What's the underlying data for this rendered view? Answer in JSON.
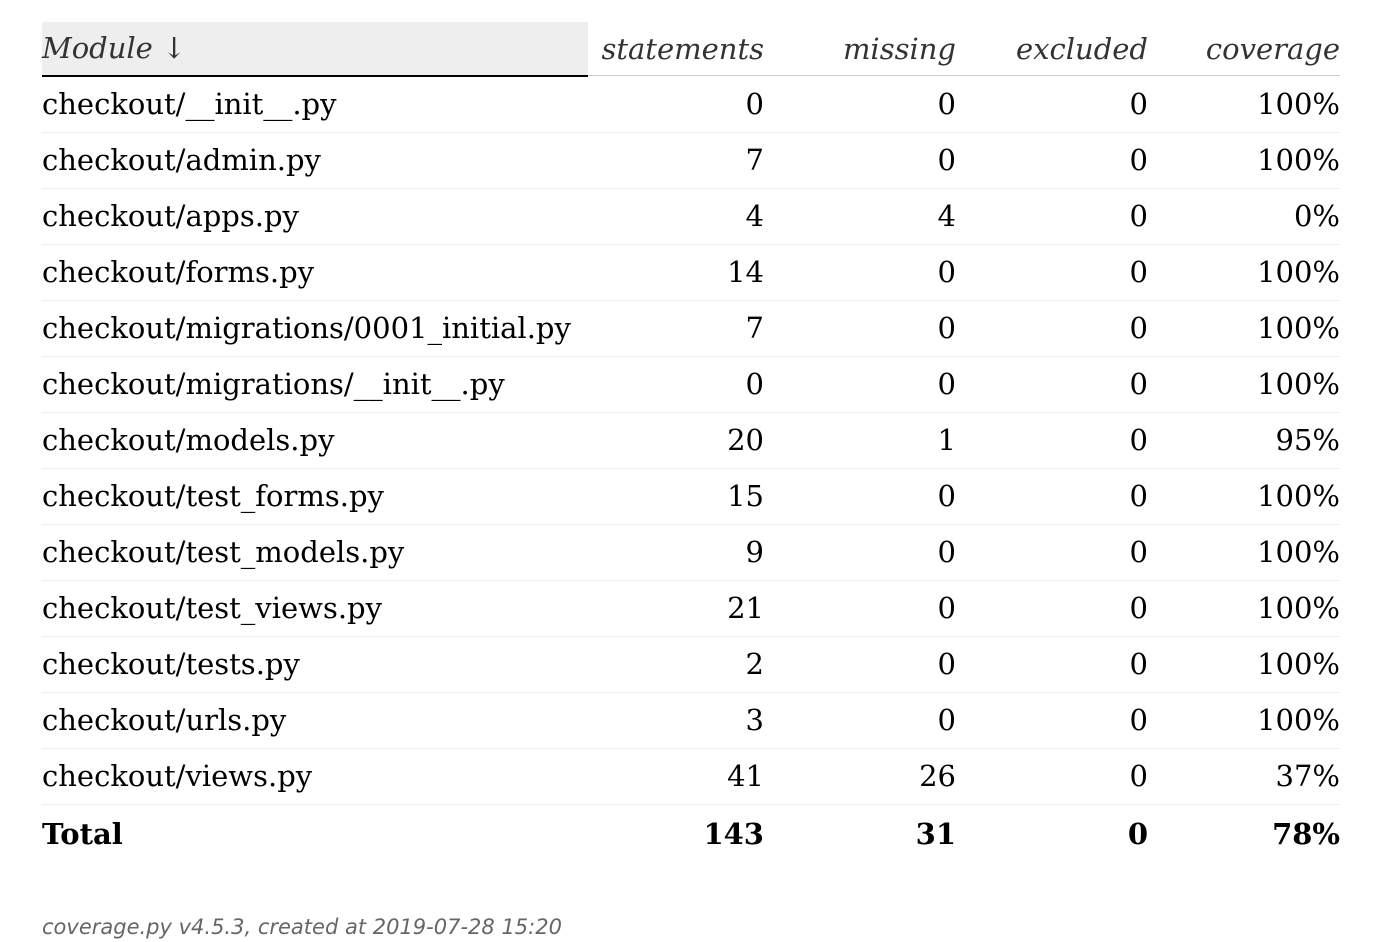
{
  "header": {
    "module": "Module ↓",
    "statements": "statements",
    "missing": "missing",
    "excluded": "excluded",
    "coverage": "coverage"
  },
  "rows": [
    {
      "module": "checkout/__init__.py",
      "statements": "0",
      "missing": "0",
      "excluded": "0",
      "coverage": "100%"
    },
    {
      "module": "checkout/admin.py",
      "statements": "7",
      "missing": "0",
      "excluded": "0",
      "coverage": "100%"
    },
    {
      "module": "checkout/apps.py",
      "statements": "4",
      "missing": "4",
      "excluded": "0",
      "coverage": "0%"
    },
    {
      "module": "checkout/forms.py",
      "statements": "14",
      "missing": "0",
      "excluded": "0",
      "coverage": "100%"
    },
    {
      "module": "checkout/migrations/0001_initial.py",
      "statements": "7",
      "missing": "0",
      "excluded": "0",
      "coverage": "100%"
    },
    {
      "module": "checkout/migrations/__init__.py",
      "statements": "0",
      "missing": "0",
      "excluded": "0",
      "coverage": "100%"
    },
    {
      "module": "checkout/models.py",
      "statements": "20",
      "missing": "1",
      "excluded": "0",
      "coverage": "95%"
    },
    {
      "module": "checkout/test_forms.py",
      "statements": "15",
      "missing": "0",
      "excluded": "0",
      "coverage": "100%"
    },
    {
      "module": "checkout/test_models.py",
      "statements": "9",
      "missing": "0",
      "excluded": "0",
      "coverage": "100%"
    },
    {
      "module": "checkout/test_views.py",
      "statements": "21",
      "missing": "0",
      "excluded": "0",
      "coverage": "100%"
    },
    {
      "module": "checkout/tests.py",
      "statements": "2",
      "missing": "0",
      "excluded": "0",
      "coverage": "100%"
    },
    {
      "module": "checkout/urls.py",
      "statements": "3",
      "missing": "0",
      "excluded": "0",
      "coverage": "100%"
    },
    {
      "module": "checkout/views.py",
      "statements": "41",
      "missing": "26",
      "excluded": "0",
      "coverage": "37%"
    }
  ],
  "total": {
    "label": "Total",
    "statements": "143",
    "missing": "31",
    "excluded": "0",
    "coverage": "78%"
  },
  "footer": {
    "tool_link": "coverage.py v4.5.3",
    "created": ", created at 2019-07-28 15:20"
  }
}
